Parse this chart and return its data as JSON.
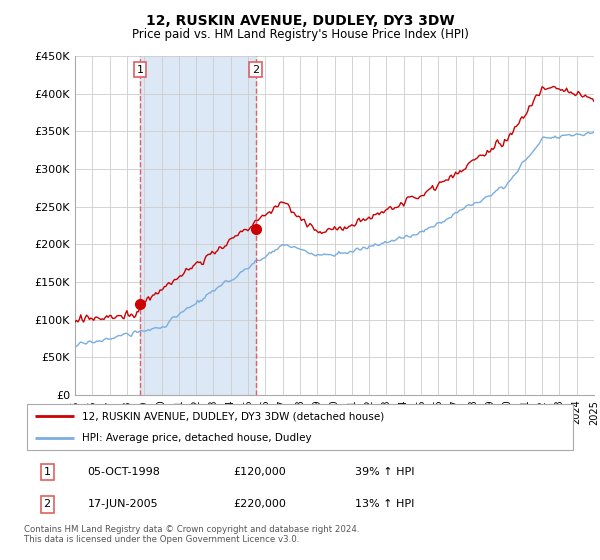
{
  "title": "12, RUSKIN AVENUE, DUDLEY, DY3 3DW",
  "subtitle": "Price paid vs. HM Land Registry's House Price Index (HPI)",
  "ylabel_ticks": [
    "£0",
    "£50K",
    "£100K",
    "£150K",
    "£200K",
    "£250K",
    "£300K",
    "£350K",
    "£400K",
    "£450K"
  ],
  "ylim": [
    0,
    450000
  ],
  "xlim_years": [
    1995,
    2025
  ],
  "sale1": {
    "date": "05-OCT-1998",
    "price": 120000,
    "hpi_pct": "39% ↑ HPI",
    "year": 1998.75,
    "label": "1"
  },
  "sale2": {
    "date": "17-JUN-2005",
    "price": 220000,
    "hpi_pct": "13% ↑ HPI",
    "year": 2005.45,
    "label": "2"
  },
  "legend_line1": "12, RUSKIN AVENUE, DUDLEY, DY3 3DW (detached house)",
  "legend_line2": "HPI: Average price, detached house, Dudley",
  "footnote": "Contains HM Land Registry data © Crown copyright and database right 2024.\nThis data is licensed under the Open Government Licence v3.0.",
  "red_color": "#cc0000",
  "blue_color": "#7aade0",
  "shade_color": "#dce8f5",
  "vline_color": "#e06060",
  "background_color": "#ffffff",
  "grid_color": "#cccccc"
}
